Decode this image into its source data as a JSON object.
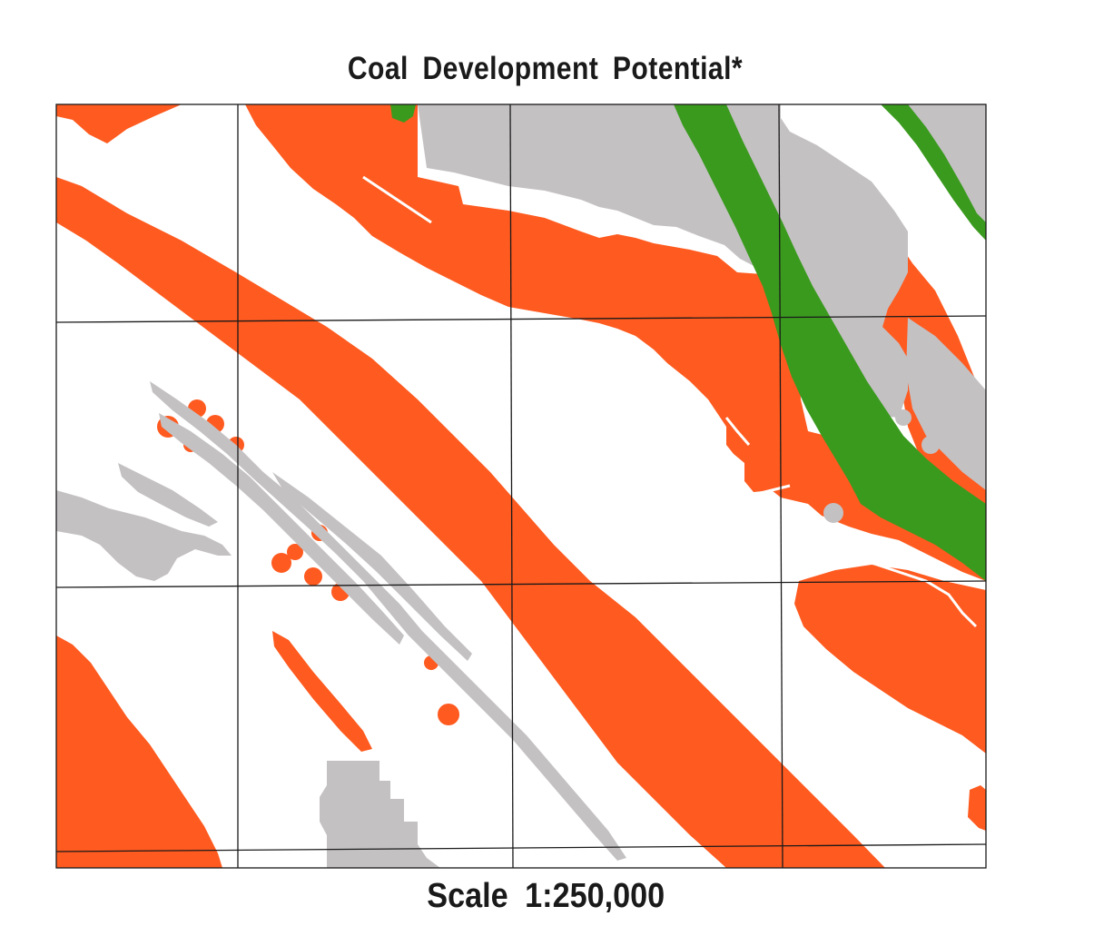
{
  "map": {
    "title": "Coal Development Potential*",
    "scale_label": "Scale 1:250,000",
    "colors": {
      "orange_zone": "#ff5a1f",
      "gray_zone": "#c4c1c3",
      "green_zone": "#3a9a1e",
      "background": "#ffffff",
      "grid": "#1a1a1a"
    },
    "grid": {
      "columns": 4,
      "rows": 3
    }
  }
}
